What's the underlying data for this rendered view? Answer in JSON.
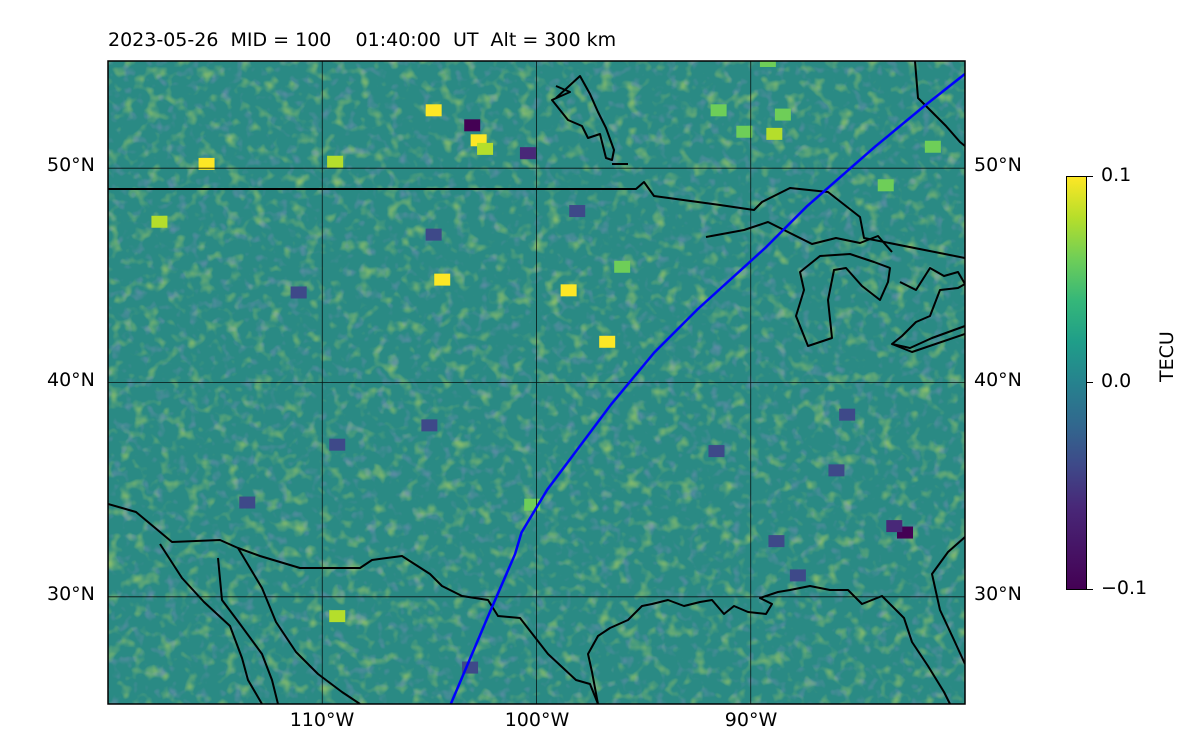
{
  "header": {
    "title": "2023-05-26  MID = 100    01:40:00  UT  Alt = 300 km"
  },
  "map": {
    "projection": "equirectangular",
    "lon_range": [
      -120,
      -80
    ],
    "lat_range": [
      25,
      55
    ],
    "field": "TEC perturbation",
    "colormap": "viridis",
    "lat_ticks": [
      {
        "value": 50,
        "label": "50°N"
      },
      {
        "value": 40,
        "label": "40°N"
      },
      {
        "value": 30,
        "label": "30°N"
      }
    ],
    "lon_ticks": [
      {
        "value": -110,
        "label": "110°W"
      },
      {
        "value": -100,
        "label": "100°W"
      },
      {
        "value": -90,
        "label": "90°W"
      }
    ],
    "track_color": "#0000ff",
    "track": [
      [
        -104,
        25
      ],
      [
        -102.3,
        29
      ],
      [
        -101,
        32
      ],
      [
        -100.7,
        33
      ],
      [
        -99.5,
        35
      ],
      [
        -98,
        37
      ],
      [
        -96.5,
        39
      ],
      [
        -94.5,
        41.4
      ],
      [
        -92.5,
        43.4
      ],
      [
        -89.3,
        46.3
      ],
      [
        -87.4,
        48.2
      ],
      [
        -84.2,
        51
      ],
      [
        -81.9,
        52.9
      ],
      [
        -80,
        54.4
      ]
    ],
    "hotspots": [
      {
        "lon": -115.4,
        "lat": 50.2,
        "v": 0.09
      },
      {
        "lon": -109.4,
        "lat": 50.3,
        "v": 0.07
      },
      {
        "lon": -104.8,
        "lat": 52.7,
        "v": 0.1
      },
      {
        "lon": -102.7,
        "lat": 51.3,
        "v": 0.08
      },
      {
        "lon": -102.4,
        "lat": 50.9,
        "v": 0.07
      },
      {
        "lon": -90.3,
        "lat": 51.7,
        "v": 0.06
      },
      {
        "lon": -88.9,
        "lat": 51.6,
        "v": 0.07
      },
      {
        "lon": -88.5,
        "lat": 52.5,
        "v": 0.05
      },
      {
        "lon": -104.4,
        "lat": 44.8,
        "v": 0.08
      },
      {
        "lon": -98.5,
        "lat": 44.3,
        "v": 0.09
      },
      {
        "lon": -96.7,
        "lat": 41.9,
        "v": 0.1
      },
      {
        "lon": -96.0,
        "lat": 45.4,
        "v": 0.06
      },
      {
        "lon": -117.6,
        "lat": 47.5,
        "v": 0.07
      },
      {
        "lon": -109.3,
        "lat": 29.1,
        "v": 0.07
      },
      {
        "lon": -100.2,
        "lat": 34.3,
        "v": 0.05
      },
      {
        "lon": -83.7,
        "lat": 49.2,
        "v": 0.05
      },
      {
        "lon": -81.5,
        "lat": 51.0,
        "v": 0.06
      },
      {
        "lon": -91.5,
        "lat": 52.7,
        "v": 0.05
      },
      {
        "lon": -89.2,
        "lat": 55.0,
        "v": 0.06
      },
      {
        "lon": -103.0,
        "lat": 52.0,
        "v": -0.09
      },
      {
        "lon": -100.4,
        "lat": 50.7,
        "v": -0.08
      },
      {
        "lon": -82.8,
        "lat": 33.0,
        "v": -0.1
      },
      {
        "lon": -83.3,
        "lat": 33.3,
        "v": -0.08
      },
      {
        "lon": -104.8,
        "lat": 46.9,
        "v": -0.05
      },
      {
        "lon": -109.3,
        "lat": 37.1,
        "v": -0.06
      },
      {
        "lon": -105.0,
        "lat": 38.0,
        "v": -0.06
      },
      {
        "lon": -103.1,
        "lat": 26.7,
        "v": -0.06
      },
      {
        "lon": -91.6,
        "lat": 36.8,
        "v": -0.05
      },
      {
        "lon": -87.8,
        "lat": 31.0,
        "v": -0.05
      },
      {
        "lon": -88.8,
        "lat": 32.6,
        "v": -0.06
      },
      {
        "lon": -111.1,
        "lat": 44.2,
        "v": -0.05
      },
      {
        "lon": -98.1,
        "lat": 48.0,
        "v": -0.05
      },
      {
        "lon": -86.0,
        "lat": 35.9,
        "v": -0.05
      },
      {
        "lon": -85.5,
        "lat": 38.5,
        "v": -0.05
      },
      {
        "lon": -113.5,
        "lat": 34.4,
        "v": -0.05
      }
    ]
  },
  "colorbar": {
    "label": "TECU",
    "range": [
      -0.1,
      0.1
    ],
    "ticks": [
      {
        "value": 0.1,
        "label": "0.1"
      },
      {
        "value": 0.0,
        "label": "0.0"
      },
      {
        "value": -0.1,
        "label": "−0.1"
      }
    ]
  }
}
